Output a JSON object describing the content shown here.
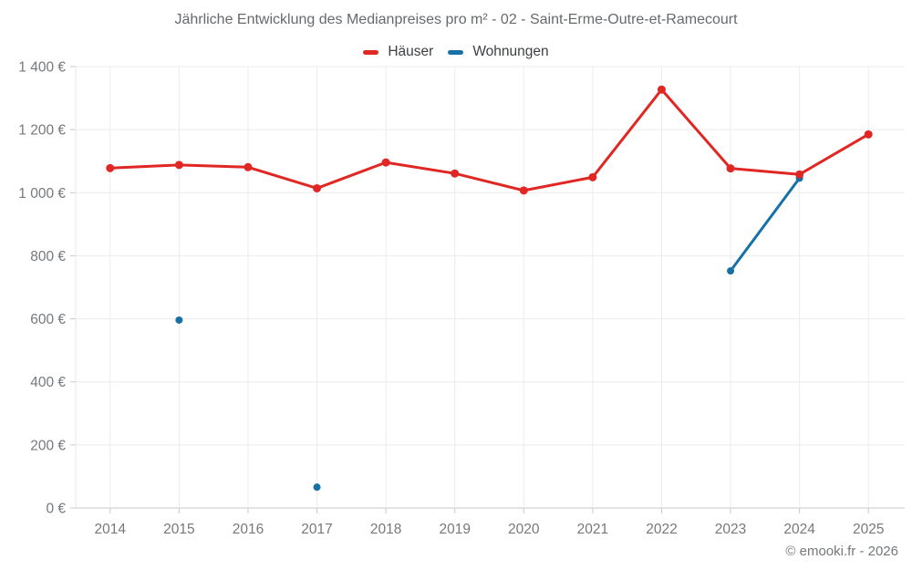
{
  "header": {
    "copyright": "© emooki.fr - 2026"
  },
  "chart_data": {
    "type": "line",
    "title": "Jährliche Entwicklung des Medianpreises pro m² - 02 - Saint-Erme-Outre-et-Ramecourt",
    "xlabel": "",
    "ylabel": "",
    "categories": [
      "2014",
      "2015",
      "2016",
      "2017",
      "2018",
      "2019",
      "2020",
      "2021",
      "2022",
      "2023",
      "2024",
      "2025"
    ],
    "series": [
      {
        "name": "Häuser",
        "color": "#e02723",
        "line_width": 3,
        "marker_radius": 4.5,
        "values": [
          1078,
          1088,
          1081,
          1014,
          1096,
          1061,
          1007,
          1049,
          1327,
          1077,
          1058,
          1185
        ]
      },
      {
        "name": "Wohnungen",
        "color": "#1571a6",
        "line_width": 3,
        "marker_radius": 4,
        "values": [
          null,
          596,
          null,
          66,
          null,
          null,
          null,
          null,
          null,
          752,
          1046,
          null
        ]
      }
    ],
    "ylim": [
      0,
      1400
    ],
    "y_tick_step": 200,
    "y_tick_labels": [
      "0 €",
      "200 €",
      "400 €",
      "600 €",
      "800 €",
      "1 000 €",
      "1 200 €",
      "1 400 €"
    ],
    "grid": true,
    "legend_position": "top",
    "colors": {
      "gridline": "#ececec",
      "axis_line": "#c6c9cc",
      "left_axis_line": "#e7e7e7",
      "axis_text": "#75787c",
      "title_text": "#66696d",
      "legend_text": "#3d4043"
    }
  }
}
